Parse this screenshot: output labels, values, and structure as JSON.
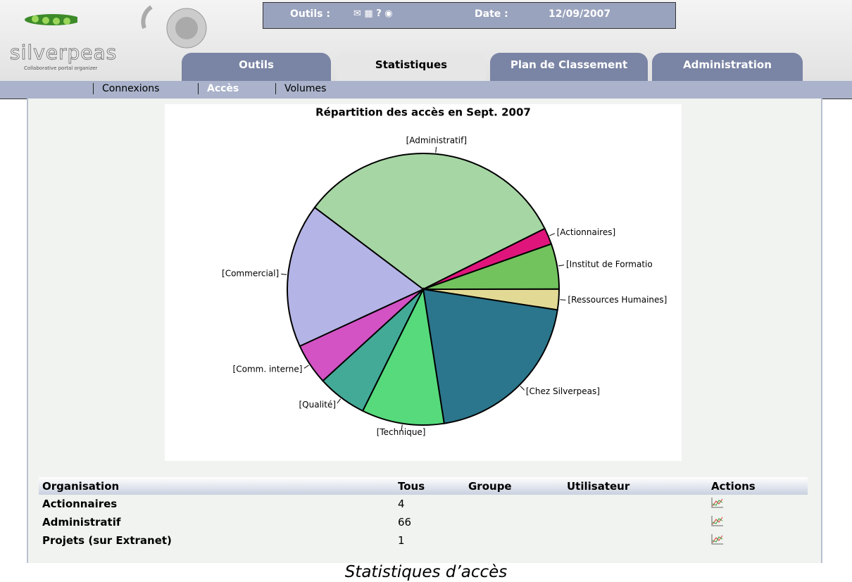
{
  "header": {
    "logo": "silverpeas",
    "tagline": "Collaborative portal organizer",
    "tools_label": "Outils :",
    "date_label": "Date :",
    "date": "12/09/2007"
  },
  "tabs": [
    "Outils",
    "Statistiques",
    "Plan de Classement",
    "Administration"
  ],
  "subnav": [
    "Connexions",
    "Accès",
    "Volumes"
  ],
  "chart_data": {
    "type": "pie",
    "title": "Répartition des accès en Sept. 2007",
    "categories": [
      "[Administratif]",
      "[Actionnaires]",
      "[Institut de Formatio",
      "[Ressources Humaines]",
      "[Chez Silverpeas]",
      "[Technique]",
      "[Qualité]",
      "[Comm. interne]",
      "[Commercial]"
    ],
    "values": [
      66,
      4,
      11,
      5,
      41,
      20,
      12,
      10,
      35
    ],
    "colors": [
      "#a6d6a4",
      "#e0157c",
      "#72c35e",
      "#e2da94",
      "#2b768c",
      "#56da7c",
      "#43aa98",
      "#d352c4",
      "#b5b4e6"
    ]
  },
  "table": {
    "headers": [
      "Organisation",
      "Tous",
      "Groupe",
      "Utilisateur",
      "Actions"
    ],
    "rows": [
      [
        "Actionnaires",
        4
      ],
      [
        "Administratif",
        66
      ],
      [
        "Projets (sur Extranet)",
        1
      ]
    ]
  },
  "caption": "Statistiques d’accès"
}
